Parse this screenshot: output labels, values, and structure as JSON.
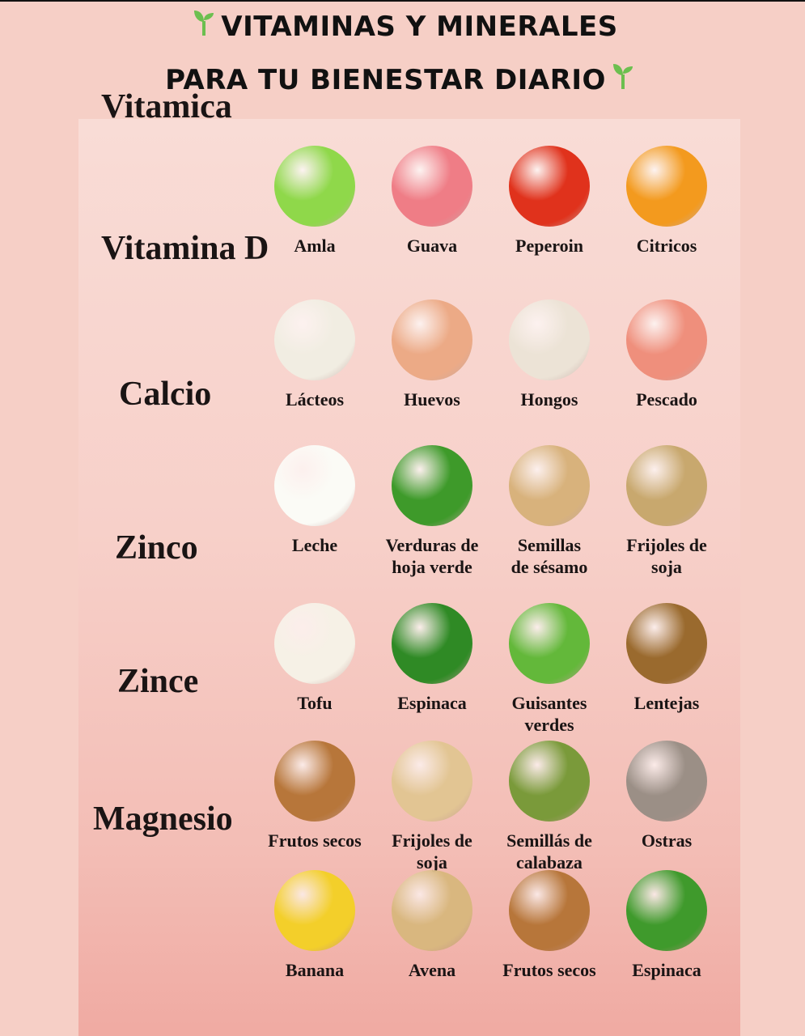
{
  "title": {
    "line1": "VITAMINAS Y MINERALES",
    "line2": "PARA TU BIENESTAR DIARIO",
    "icon": "sprout-icon",
    "icon_color": "#6cbf4f"
  },
  "rows": [
    {
      "nutrient": "Vitamica",
      "items": [
        {
          "label": "Amla",
          "color": "#8fd84a"
        },
        {
          "label": "Guava",
          "color": "#ef7d86"
        },
        {
          "label": "Peperoin",
          "color": "#e0321c"
        },
        {
          "label": "Citricos",
          "color": "#f39a1e"
        }
      ]
    },
    {
      "nutrient": "Vitamina D",
      "items": [
        {
          "label": "Lácteos",
          "color": "#f1ede2"
        },
        {
          "label": "Huevos",
          "color": "#ecaa86"
        },
        {
          "label": "Hongos",
          "color": "#ece3d6"
        },
        {
          "label": "Pescado",
          "color": "#ef8f7c"
        }
      ]
    },
    {
      "nutrient": "Calcio",
      "items": [
        {
          "label": "Leche",
          "color": "#fbfbf6"
        },
        {
          "label": "Verduras de\nhoja verde",
          "color": "#3e9a2a"
        },
        {
          "label": "Semillas\nde sésamo",
          "color": "#d8b27c"
        },
        {
          "label": "Frijoles de\nsoja",
          "color": "#c8a86e"
        }
      ]
    },
    {
      "nutrient": "Zinco",
      "items": [
        {
          "label": "Tofu",
          "color": "#f6f1e6"
        },
        {
          "label": "Espinaca",
          "color": "#2f8a25"
        },
        {
          "label": "Guisantes\nverdes",
          "color": "#63b83a"
        },
        {
          "label": "Lentejas",
          "color": "#9a6a2e"
        }
      ]
    },
    {
      "nutrient": "Zince",
      "items": [
        {
          "label": "Frutos secos",
          "color": "#b7763a"
        },
        {
          "label": "Frijoles de\nsoja",
          "color": "#e2c593"
        },
        {
          "label": "Semillás de\ncalabaza",
          "color": "#7a9a3a"
        },
        {
          "label": "Ostras",
          "color": "#9b8f86"
        }
      ]
    },
    {
      "nutrient": "Magnesio",
      "items": [
        {
          "label": "Banana",
          "color": "#f3cf2a"
        },
        {
          "label": "Avena",
          "color": "#d9b77f"
        },
        {
          "label": "Frutos secos",
          "color": "#b7763a"
        },
        {
          "label": "Espinaca",
          "color": "#3f9a2c"
        }
      ]
    }
  ]
}
